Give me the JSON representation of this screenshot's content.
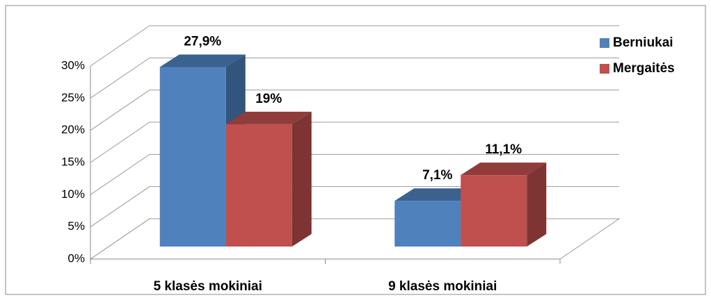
{
  "chart_data": {
    "type": "bar3d",
    "categories": [
      "5 klasės mokiniai",
      "9 klasės mokiniai"
    ],
    "series": [
      {
        "name": "Berniukai",
        "color": "#4f81bd",
        "values": [
          27.9,
          7.1
        ],
        "value_labels": [
          "27,9%",
          "7,1%"
        ]
      },
      {
        "name": "Mergaitės",
        "color": "#c0504d",
        "values": [
          19,
          11.1
        ],
        "value_labels": [
          "19%",
          "11,1%"
        ]
      }
    ],
    "ylim": [
      0,
      30
    ],
    "yticks": [
      {
        "value": 0,
        "label": "0%"
      },
      {
        "value": 5,
        "label": "5%"
      },
      {
        "value": 10,
        "label": "10%"
      },
      {
        "value": 15,
        "label": "15%"
      },
      {
        "value": 20,
        "label": "20%"
      },
      {
        "value": 25,
        "label": "25%"
      },
      {
        "value": 30,
        "label": "30%"
      }
    ],
    "grid": true,
    "legend": "top-right"
  }
}
